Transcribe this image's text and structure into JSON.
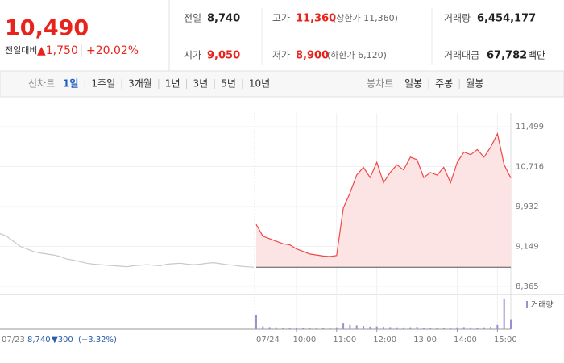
{
  "header": {
    "price": "10,490",
    "change_label": "전일대비",
    "change": "▲1,750",
    "change_pct": "+20.02%",
    "stats": [
      {
        "label": "전일",
        "value": "8,740"
      },
      {
        "label": "고가",
        "value": "11,360",
        "note": "(상한가 11,360)"
      },
      {
        "label": "거래량",
        "value": "6,454,177"
      },
      {
        "label": "시가",
        "value": "9,050"
      },
      {
        "label": "저가",
        "value": "8,900",
        "note": "(하한가 6,120)"
      },
      {
        "label": "거래대금",
        "value": "67,782",
        "note": "백만"
      }
    ]
  },
  "tabs": {
    "line_label": "선차트",
    "line": [
      "1일",
      "1주일",
      "3개월",
      "1년",
      "3년",
      "5년",
      "10년"
    ],
    "candle_label": "봉차트",
    "candle": [
      "일봉",
      "주봉",
      "월봉"
    ]
  },
  "chart_data": [
    {
      "type": "line",
      "x": [
        0,
        10,
        20,
        30,
        40,
        50,
        60,
        70,
        80,
        90,
        100,
        110,
        120,
        130,
        140,
        150,
        160,
        170,
        180,
        190,
        200,
        210,
        220,
        230,
        240,
        250,
        260,
        270,
        280,
        290,
        300,
        310,
        320,
        330,
        340,
        350,
        360,
        370,
        380
      ],
      "xlim": [
        0,
        380
      ],
      "xticks": [
        {
          "value": 60,
          "label": "10:00"
        },
        {
          "value": 120,
          "label": "11:00"
        },
        {
          "value": 180,
          "label": "12:00"
        },
        {
          "value": 240,
          "label": "13:00"
        },
        {
          "value": 300,
          "label": "14:00"
        },
        {
          "value": 360,
          "label": "15:00"
        }
      ],
      "ylim": [
        8365,
        11499
      ],
      "yticks": [
        {
          "value": 8365,
          "label": "8,365"
        },
        {
          "value": 9149,
          "label": "9,149"
        },
        {
          "value": 9932,
          "label": "9,932"
        },
        {
          "value": 10716,
          "label": "10,716"
        },
        {
          "value": 11499,
          "label": "11,499"
        }
      ],
      "baseline": 8740,
      "grid": true,
      "series": [
        {
          "name": "07/23",
          "color": "#c8c8c8",
          "values": [
            9400,
            9350,
            9250,
            9150,
            9100,
            9050,
            9020,
            9000,
            8980,
            8950,
            8900,
            8880,
            8850,
            8820,
            8800,
            8790,
            8780,
            8770,
            8760,
            8750,
            8770,
            8780,
            8790,
            8780,
            8770,
            8800,
            8810,
            8820,
            8800,
            8790,
            8800,
            8820,
            8830,
            8810,
            8790,
            8780,
            8760,
            8750,
            8740
          ]
        },
        {
          "name": "07/24",
          "color": "#f04848",
          "values": [
            9580,
            9350,
            9300,
            9250,
            9200,
            9180,
            9100,
            9050,
            9000,
            8980,
            8960,
            8950,
            8970,
            9900,
            10200,
            10550,
            10700,
            10500,
            10800,
            10400,
            10600,
            10750,
            10650,
            10900,
            10850,
            10500,
            10600,
            10550,
            10700,
            10400,
            10800,
            11000,
            10950,
            11050,
            10900,
            11100,
            11360,
            10750,
            10490
          ]
        }
      ]
    },
    {
      "type": "bar",
      "ylim": [
        0,
        700000
      ],
      "series": [
        {
          "name": "거래량",
          "color": "#9b8fd0",
          "values": [
            300000,
            60000,
            45000,
            40000,
            35000,
            30000,
            25000,
            22000,
            20000,
            25000,
            30000,
            28000,
            40000,
            120000,
            90000,
            80000,
            70000,
            55000,
            60000,
            50000,
            45000,
            40000,
            38000,
            42000,
            50000,
            35000,
            30000,
            32000,
            36000,
            30000,
            40000,
            45000,
            38000,
            35000,
            40000,
            50000,
            90000,
            650000,
            200000
          ]
        }
      ]
    }
  ],
  "footer": {
    "close": "8,740",
    "change": "▼300",
    "change_pct": "(−3.32%)"
  }
}
